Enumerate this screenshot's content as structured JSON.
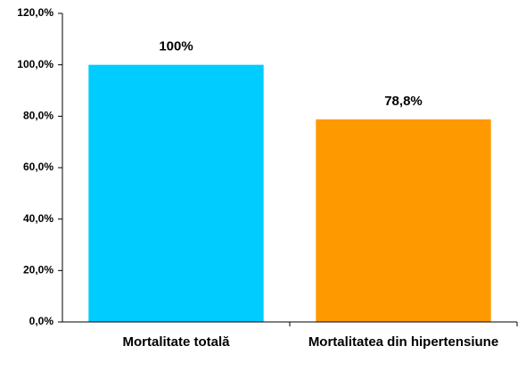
{
  "chart_data": {
    "type": "bar",
    "categories": [
      "Mortalitate totală",
      "Mortalitatea din hipertensiune"
    ],
    "values": [
      100,
      78.8
    ],
    "value_labels": [
      "100%",
      "78,8%"
    ],
    "colors": [
      "#00ccff",
      "#ff9900"
    ],
    "ylim": [
      0,
      120
    ],
    "yticks": [
      {
        "value": 0,
        "label": "0,0%"
      },
      {
        "value": 20,
        "label": "20,0%"
      },
      {
        "value": 40,
        "label": "40,0%"
      },
      {
        "value": 60,
        "label": "60,0%"
      },
      {
        "value": 80,
        "label": "80,0%"
      },
      {
        "value": 100,
        "label": "100,0%"
      },
      {
        "value": 120,
        "label": "120,0%"
      }
    ],
    "grid": false
  }
}
